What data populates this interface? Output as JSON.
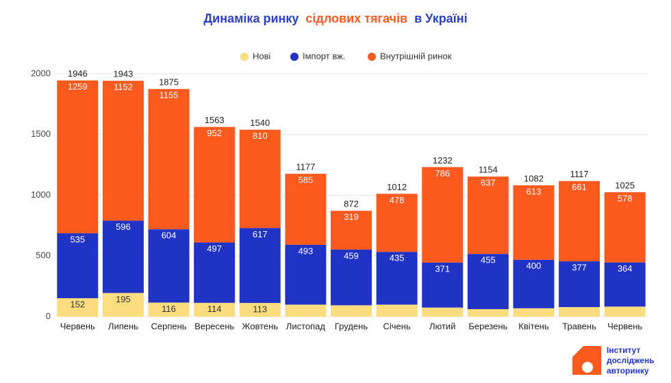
{
  "chart_data": {
    "type": "stacked_bar",
    "title": [
      "Динаміка ринку",
      "сідлових тягачів",
      "в Україні"
    ],
    "title_colors": [
      "#2b3fc4",
      "#fb5a1f",
      "#2b3fc4"
    ],
    "categories": [
      "Червень",
      "Липень",
      "Серпень",
      "Вересень",
      "Жовтень",
      "Листопад",
      "Грудень",
      "Січень",
      "Лютий",
      "Березень",
      "Квітень",
      "Травень",
      "Червень"
    ],
    "series": [
      {
        "name": "Нові",
        "color": "#fbdc7e",
        "values": [
          152,
          195,
          116,
          114,
          113,
          99,
          94,
          99,
          75,
          62,
          69,
          79,
          83
        ],
        "value_labels": [
          "152",
          "195",
          "116",
          "114",
          "113",
          null,
          null,
          null,
          null,
          null,
          null,
          null,
          null
        ]
      },
      {
        "name": "Імпорт вж.",
        "color": "#2133c4",
        "values": [
          535,
          596,
          604,
          497,
          617,
          493,
          459,
          435,
          371,
          455,
          400,
          377,
          364
        ]
      },
      {
        "name": "Внутрішній ринок",
        "color": "#fb5a1f",
        "values": [
          1259,
          1152,
          1155,
          952,
          810,
          585,
          319,
          478,
          786,
          637,
          613,
          661,
          578
        ]
      }
    ],
    "totals": [
      1946,
      1943,
      1875,
      1563,
      1540,
      1177,
      872,
      1012,
      1232,
      1154,
      1082,
      1117,
      1025
    ],
    "ylim": [
      0,
      2000
    ],
    "yticks": [
      0,
      500,
      1000,
      1500,
      2000
    ],
    "grid": true,
    "logo": [
      "Інститут",
      "досліджень",
      "авторинку"
    ]
  }
}
